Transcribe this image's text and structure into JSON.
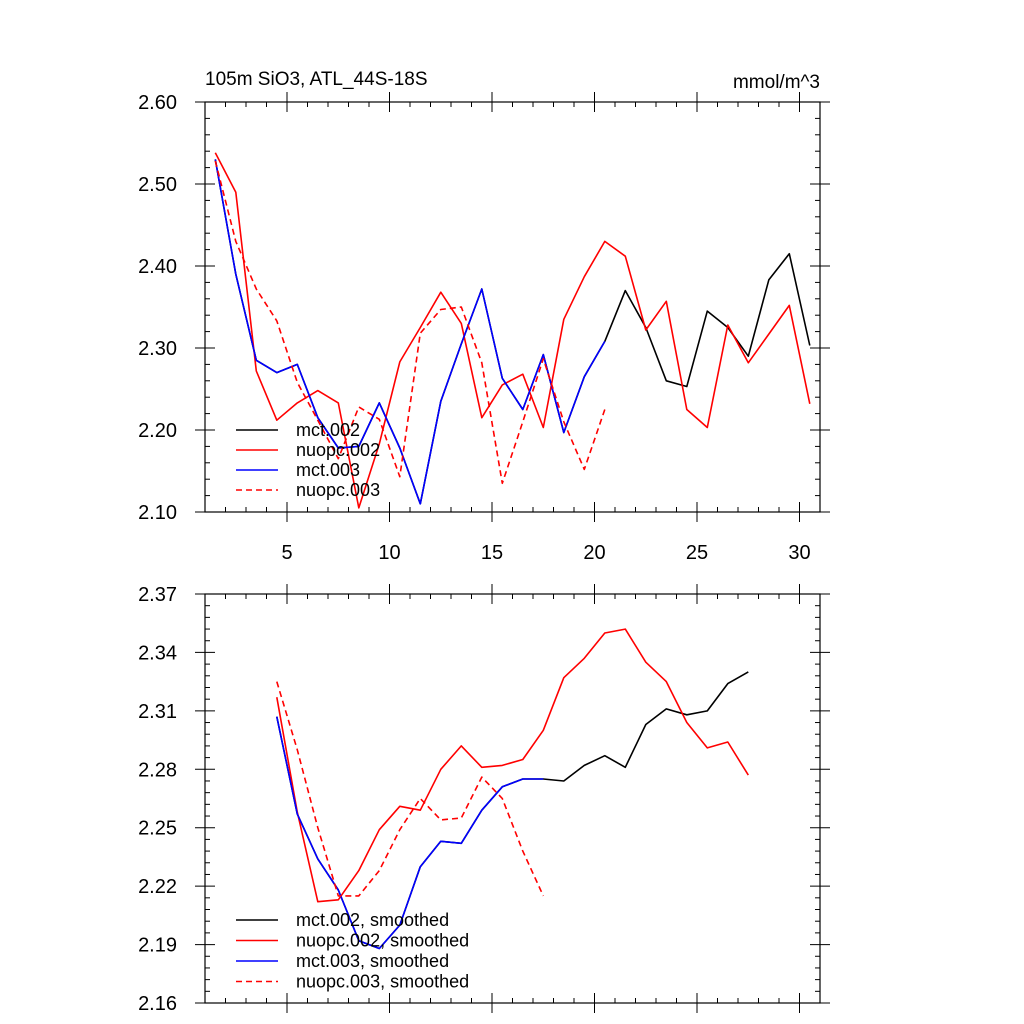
{
  "chart_data": [
    {
      "type": "line",
      "title_left": "105m SiO3, ATL_44S-18S",
      "title_right": "mmol/m^3",
      "xlim": [
        1,
        31
      ],
      "ylim": [
        2.1,
        2.6
      ],
      "xticks": [
        5,
        10,
        15,
        20,
        25,
        30
      ],
      "xtick_labels": [
        "5",
        "10",
        "15",
        "20",
        "25",
        "30"
      ],
      "yticks": [
        2.1,
        2.2,
        2.3,
        2.4,
        2.5,
        2.6
      ],
      "ytick_labels": [
        "2.10",
        "2.20",
        "2.30",
        "2.40",
        "2.50",
        "2.60"
      ],
      "series": [
        {
          "name": "mct.002",
          "color": "#000000",
          "dash": "solid",
          "x": [
            1.5,
            2.5,
            3.5,
            4.5,
            5.5,
            6.5,
            7.5,
            8.5,
            9.5,
            10.5,
            11.5,
            12.5,
            13.5,
            14.5,
            15.5,
            16.5,
            17.5,
            18.5,
            19.5,
            20.5,
            21.5,
            22.5,
            23.5,
            24.5,
            25.5,
            26.5,
            27.5,
            28.5,
            29.5,
            30.5
          ],
          "y": [
            2.53,
            2.39,
            2.285,
            2.27,
            2.28,
            2.215,
            2.178,
            2.18,
            2.233,
            2.178,
            2.11,
            2.235,
            2.305,
            2.372,
            2.263,
            2.225,
            2.292,
            2.197,
            2.265,
            2.308,
            2.37,
            2.325,
            2.26,
            2.253,
            2.345,
            2.325,
            2.29,
            2.383,
            2.415,
            2.303
          ]
        },
        {
          "name": "nuopc.002",
          "color": "#ff0000",
          "dash": "solid",
          "x": [
            1.5,
            2.5,
            3.5,
            4.5,
            5.5,
            6.5,
            7.5,
            8.5,
            9.5,
            10.5,
            11.5,
            12.5,
            13.5,
            14.5,
            15.5,
            16.5,
            17.5,
            18.5,
            19.5,
            20.5,
            21.5,
            22.5,
            23.5,
            24.5,
            25.5,
            26.5,
            27.5,
            28.5,
            29.5,
            30.5
          ],
          "y": [
            2.538,
            2.49,
            2.272,
            2.212,
            2.233,
            2.248,
            2.233,
            2.105,
            2.183,
            2.283,
            2.325,
            2.368,
            2.33,
            2.215,
            2.255,
            2.268,
            2.203,
            2.335,
            2.387,
            2.43,
            2.412,
            2.322,
            2.357,
            2.225,
            2.203,
            2.328,
            2.282,
            2.317,
            2.352,
            2.232
          ]
        },
        {
          "name": "mct.003",
          "color": "#0000ff",
          "dash": "solid",
          "x": [
            1.5,
            2.5,
            3.5,
            4.5,
            5.5,
            6.5,
            7.5,
            8.5,
            9.5,
            10.5,
            11.5,
            12.5,
            13.5,
            14.5,
            15.5,
            16.5,
            17.5,
            18.5,
            19.5,
            20.5
          ],
          "y": [
            2.53,
            2.39,
            2.285,
            2.27,
            2.28,
            2.215,
            2.178,
            2.18,
            2.233,
            2.178,
            2.11,
            2.235,
            2.305,
            2.372,
            2.263,
            2.225,
            2.292,
            2.197,
            2.265,
            2.308
          ]
        },
        {
          "name": "nuopc.003",
          "color": "#ff0000",
          "dash": "dashed",
          "x": [
            1.5,
            2.5,
            3.5,
            4.5,
            5.5,
            6.5,
            7.5,
            8.5,
            9.5,
            10.5,
            11.5,
            12.5,
            13.5,
            14.5,
            15.5,
            16.5,
            17.5,
            18.5,
            19.5,
            20.5
          ],
          "y": [
            2.528,
            2.43,
            2.372,
            2.333,
            2.258,
            2.212,
            2.165,
            2.228,
            2.213,
            2.143,
            2.318,
            2.347,
            2.35,
            2.282,
            2.135,
            2.21,
            2.287,
            2.21,
            2.152,
            2.225
          ]
        }
      ],
      "legend": [
        "mct.002",
        "nuopc.002",
        "mct.003",
        "nuopc.003"
      ],
      "legend_position": "bottom-left"
    },
    {
      "type": "line",
      "xlim": [
        1,
        31
      ],
      "ylim": [
        2.16,
        2.37
      ],
      "xticks": [
        5,
        10,
        15,
        20,
        25,
        30
      ],
      "yticks": [
        2.16,
        2.19,
        2.22,
        2.25,
        2.28,
        2.31,
        2.34,
        2.37
      ],
      "ytick_labels": [
        "2.16",
        "2.19",
        "2.22",
        "2.25",
        "2.28",
        "2.31",
        "2.34",
        "2.37"
      ],
      "series": [
        {
          "name": "mct.002, smoothed",
          "color": "#000000",
          "dash": "solid",
          "x": [
            4.5,
            5.5,
            6.5,
            7.5,
            8.5,
            9.5,
            10.5,
            11.5,
            12.5,
            13.5,
            14.5,
            15.5,
            16.5,
            17.5,
            18.5,
            19.5,
            20.5,
            21.5,
            22.5,
            23.5,
            24.5,
            25.5,
            26.5,
            27.5
          ],
          "y": [
            2.307,
            2.257,
            2.234,
            2.218,
            2.192,
            2.188,
            2.2,
            2.23,
            2.243,
            2.242,
            2.259,
            2.271,
            2.275,
            2.275,
            2.274,
            2.282,
            2.287,
            2.281,
            2.303,
            2.311,
            2.308,
            2.31,
            2.324,
            2.33
          ]
        },
        {
          "name": "nuopc.002, smoothed",
          "color": "#ff0000",
          "dash": "solid",
          "x": [
            4.5,
            5.5,
            6.5,
            7.5,
            8.5,
            9.5,
            10.5,
            11.5,
            12.5,
            13.5,
            14.5,
            15.5,
            16.5,
            17.5,
            18.5,
            19.5,
            20.5,
            21.5,
            22.5,
            23.5,
            24.5,
            25.5,
            26.5,
            27.5
          ],
          "y": [
            2.317,
            2.258,
            2.212,
            2.213,
            2.228,
            2.249,
            2.261,
            2.259,
            2.28,
            2.292,
            2.281,
            2.282,
            2.285,
            2.3,
            2.327,
            2.337,
            2.35,
            2.352,
            2.335,
            2.325,
            2.304,
            2.291,
            2.294,
            2.277
          ]
        },
        {
          "name": "mct.003, smoothed",
          "color": "#0000ff",
          "dash": "solid",
          "x": [
            4.5,
            5.5,
            6.5,
            7.5,
            8.5,
            9.5,
            10.5,
            11.5,
            12.5,
            13.5,
            14.5,
            15.5,
            16.5,
            17.5
          ],
          "y": [
            2.307,
            2.257,
            2.234,
            2.218,
            2.192,
            2.188,
            2.2,
            2.23,
            2.243,
            2.242,
            2.259,
            2.271,
            2.275,
            2.275
          ]
        },
        {
          "name": "nuopc.003, smoothed",
          "color": "#ff0000",
          "dash": "dashed",
          "x": [
            4.5,
            5.5,
            6.5,
            7.5,
            8.5,
            9.5,
            10.5,
            11.5,
            12.5,
            13.5,
            14.5,
            15.5,
            16.5,
            17.5
          ],
          "y": [
            2.325,
            2.29,
            2.25,
            2.215,
            2.215,
            2.228,
            2.249,
            2.265,
            2.254,
            2.255,
            2.276,
            2.265,
            2.238,
            2.215
          ]
        }
      ],
      "legend": [
        "mct.002, smoothed",
        "nuopc.002, smoothed",
        "mct.003, smoothed",
        "nuopc.003, smoothed"
      ],
      "legend_position": "bottom-left"
    }
  ]
}
